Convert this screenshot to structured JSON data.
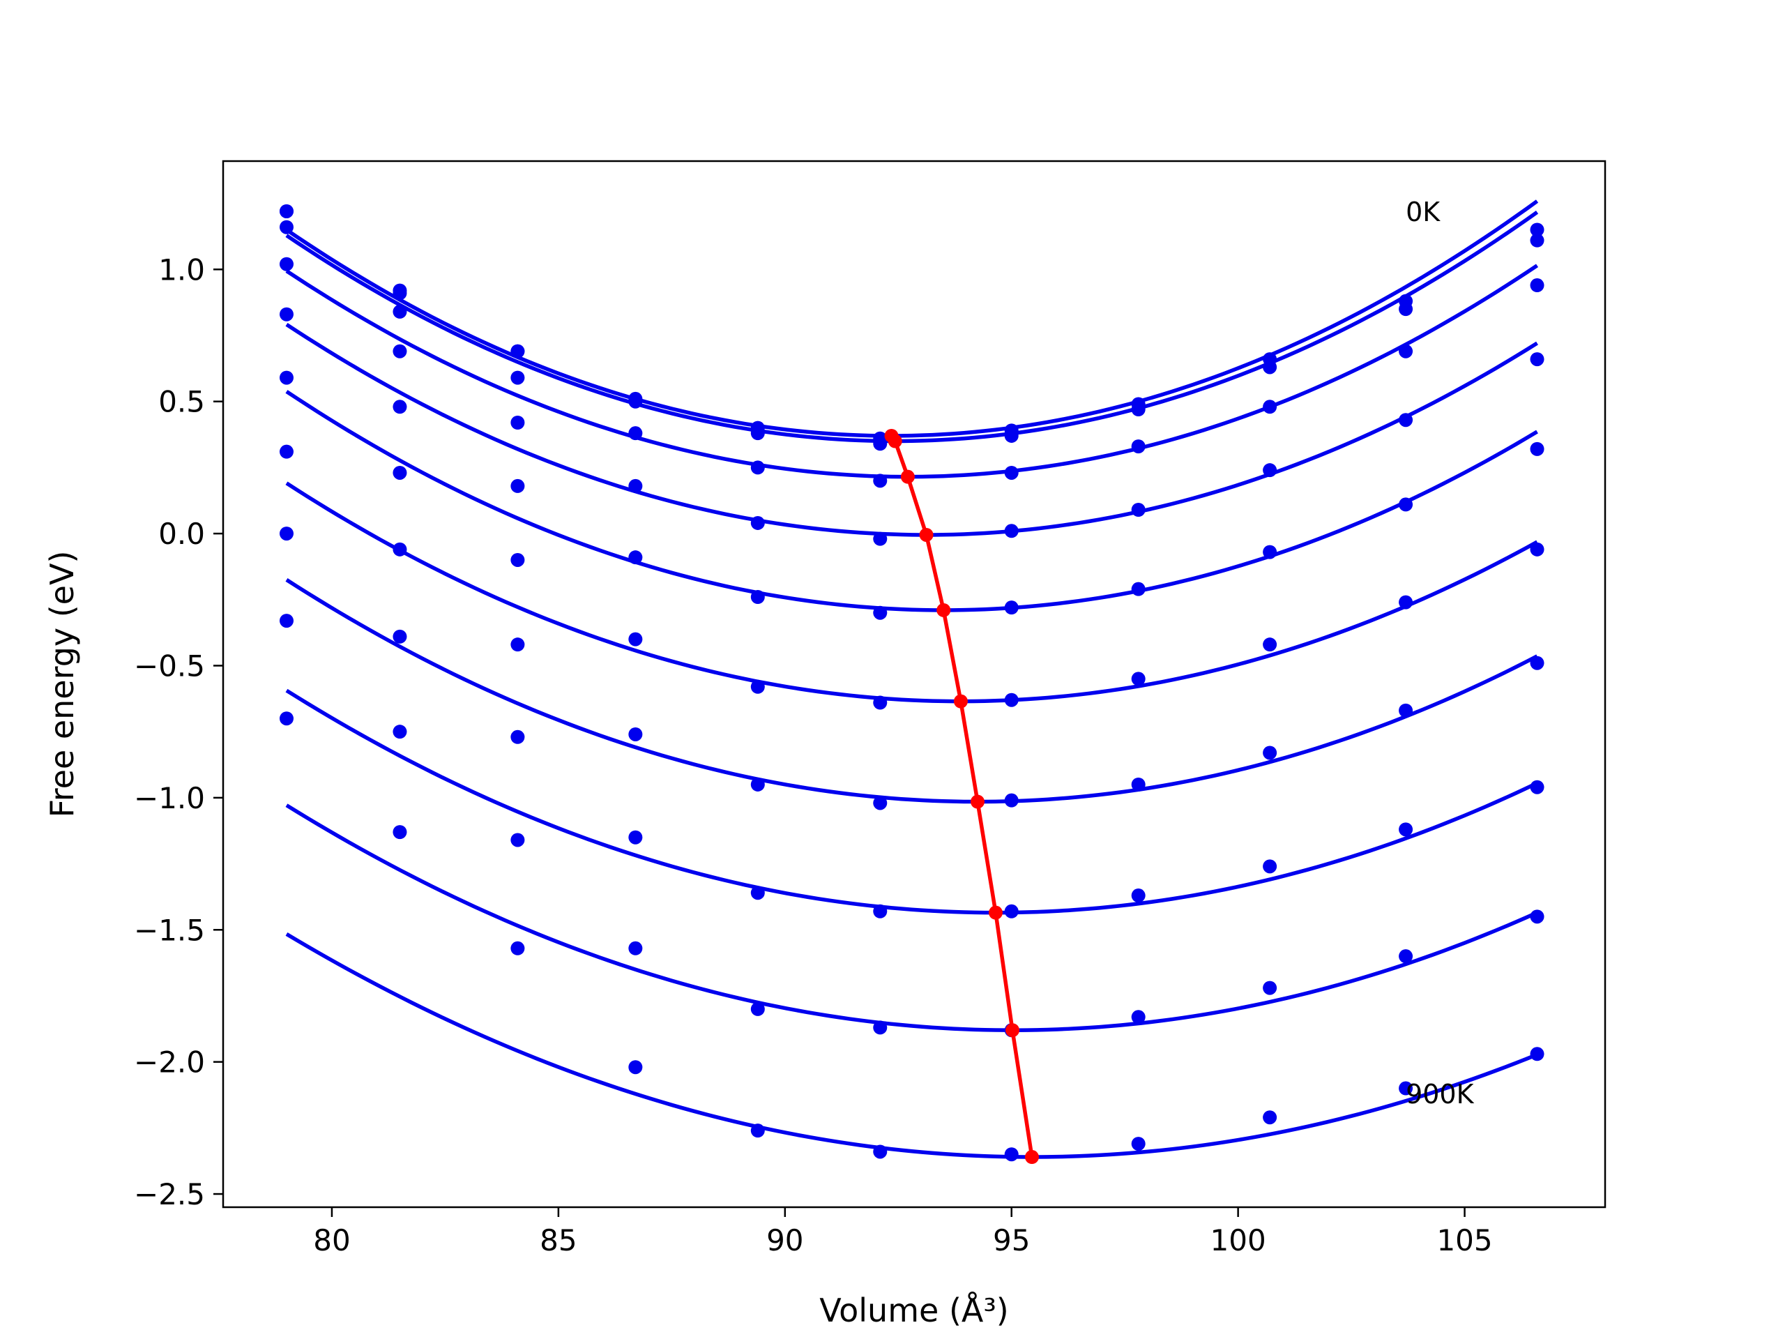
{
  "chart_data": {
    "type": "line",
    "title": "",
    "xlabel": "Volume (Å³)",
    "ylabel": "Free energy (eV)",
    "xlim": [
      77.6,
      108.1
    ],
    "ylim": [
      -2.55,
      1.41
    ],
    "x_ticks": [
      80,
      85,
      90,
      95,
      100,
      105
    ],
    "y_ticks": [
      -2.5,
      -2.0,
      -1.5,
      -1.0,
      -0.5,
      0.0,
      0.5,
      1.0
    ],
    "x_tick_labels": [
      "80",
      "85",
      "90",
      "95",
      "100",
      "105"
    ],
    "y_tick_labels": [
      "−2.5",
      "−2.0",
      "−1.5",
      "−1.0",
      "−0.5",
      "0.0",
      "0.5",
      "1.0"
    ],
    "grid": false,
    "annotations": [
      {
        "text": "0K",
        "x": 103.7,
        "y": 1.22
      },
      {
        "text": "900K",
        "x": 103.7,
        "y": -2.12
      }
    ],
    "colors": {
      "data": "#0000ee",
      "fit": "#0000ee",
      "minimum": "#ff0000"
    },
    "volumes": [
      79.0,
      81.5,
      84.1,
      86.7,
      89.4,
      92.1,
      95.0,
      97.8,
      100.7,
      103.7,
      106.6
    ],
    "series": [
      {
        "points": [
          1.22,
          0.92,
          0.69,
          0.51,
          0.4,
          0.36,
          0.39,
          0.49,
          0.66,
          0.88,
          1.15
        ],
        "fit": {
          "a": 0.004375,
          "v0": 92.35,
          "e0": 0.37
        }
      },
      {
        "points": [
          1.22,
          0.91,
          0.69,
          0.5,
          0.38,
          0.34,
          0.37,
          0.47,
          0.63,
          0.85,
          1.11
        ],
        "fit": {
          "a": 0.004316,
          "v0": 92.43,
          "e0": 0.35
        }
      },
      {
        "points": [
          1.16,
          0.84,
          0.59,
          0.38,
          0.25,
          0.2,
          0.23,
          0.33,
          0.48,
          0.69,
          0.94
        ],
        "fit": {
          "a": 0.004145,
          "v0": 92.71,
          "e0": 0.215
        }
      },
      {
        "points": [
          1.02,
          0.69,
          0.42,
          0.18,
          0.04,
          -0.02,
          0.01,
          0.09,
          0.24,
          0.43,
          0.66
        ],
        "fit": {
          "a": 0.003994,
          "v0": 93.12,
          "e0": -0.005
        }
      },
      {
        "points": [
          0.83,
          0.48,
          0.18,
          -0.09,
          -0.24,
          -0.3,
          -0.28,
          -0.21,
          -0.07,
          0.11,
          0.32
        ],
        "fit": {
          "a": 0.003937,
          "v0": 93.5,
          "e0": -0.29
        }
      },
      {
        "points": [
          0.59,
          0.23,
          -0.1,
          -0.4,
          -0.58,
          -0.64,
          -0.63,
          -0.55,
          -0.42,
          -0.26,
          -0.06
        ],
        "fit": {
          "a": 0.003729,
          "v0": 93.88,
          "e0": -0.635
        }
      },
      {
        "points": [
          0.31,
          -0.06,
          -0.42,
          -0.76,
          -0.95,
          -1.02,
          -1.01,
          -0.95,
          -0.83,
          -0.67,
          -0.49
        ],
        "fit": {
          "a": 0.003612,
          "v0": 94.25,
          "e0": -1.015
        }
      },
      {
        "points": [
          0.0,
          -0.39,
          -0.77,
          -1.15,
          -1.36,
          -1.43,
          -1.43,
          -1.37,
          -1.26,
          -1.12,
          -0.96
        ],
        "fit": {
          "a": 0.003433,
          "v0": 94.65,
          "e0": -1.435
        }
      },
      {
        "points": [
          -0.33,
          -0.75,
          -1.16,
          -1.57,
          -1.8,
          -1.87,
          -1.88,
          -1.83,
          -1.72,
          -1.6,
          -1.45
        ],
        "fit": {
          "a": 0.003318,
          "v0": 95.02,
          "e0": -1.88
        }
      },
      {
        "points": [
          -0.7,
          -1.13,
          -1.57,
          -2.02,
          -2.26,
          -2.34,
          -2.35,
          -2.31,
          -2.21,
          -2.1,
          -1.97
        ],
        "fit": {
          "a": 0.003119,
          "v0": 95.45,
          "e0": -2.36
        }
      }
    ],
    "minimum_curve": {
      "x": [
        92.35,
        92.43,
        92.71,
        93.12,
        93.5,
        93.88,
        94.25,
        94.65,
        95.02,
        95.45
      ],
      "y": [
        0.37,
        0.35,
        0.215,
        -0.005,
        -0.29,
        -0.635,
        -1.015,
        -1.435,
        -1.88,
        -2.36
      ]
    }
  }
}
